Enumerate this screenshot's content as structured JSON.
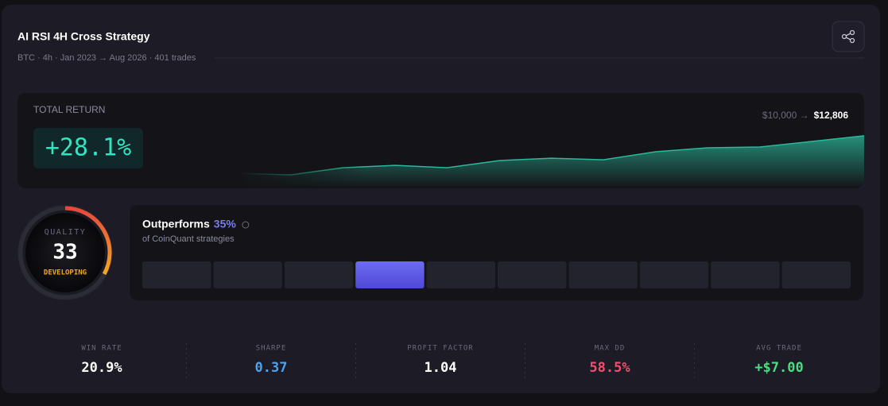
{
  "header": {
    "title": "AI RSI 4H Cross Strategy",
    "subtitle": "BTC · 4h · Jan 2023 → Aug 2026 · 401 trades"
  },
  "total_return": {
    "label": "TOTAL RETURN",
    "value": "+28.1%",
    "range_from": "$10,000 →",
    "range_to": "$12,806",
    "equity_curve": {
      "values": [
        10000,
        9881,
        10418,
        10597,
        10418,
        10955,
        11134,
        11015,
        11612,
        11910,
        11970,
        12388,
        12806
      ],
      "ylim": [
        9000,
        15000
      ],
      "color": "#2bb89a"
    }
  },
  "quality": {
    "label": "QUALITY",
    "score": 33,
    "gauge_lim": [
      0,
      100
    ],
    "status": "DEVELOPING"
  },
  "percentile": {
    "title": "Outperforms",
    "value": {
      "value": 35,
      "label": "35%"
    },
    "subtitle": "of CoinQuant strategies",
    "bars_lim": [
      0,
      100
    ]
  },
  "metrics": [
    {
      "label": "WIN RATE",
      "value": "20.9%",
      "color": "#ffffff"
    },
    {
      "label": "SHARPE",
      "value": "0.37",
      "color": "#4da3f0"
    },
    {
      "label": "PROFIT FACTOR",
      "value": "1.04",
      "color": "#ffffff"
    },
    {
      "label": "MAX DD",
      "value": "58.5%",
      "color": "#f0506e"
    },
    {
      "label": "AVG TRADE",
      "value": "+$7.00",
      "color": "#4ade80"
    }
  ]
}
